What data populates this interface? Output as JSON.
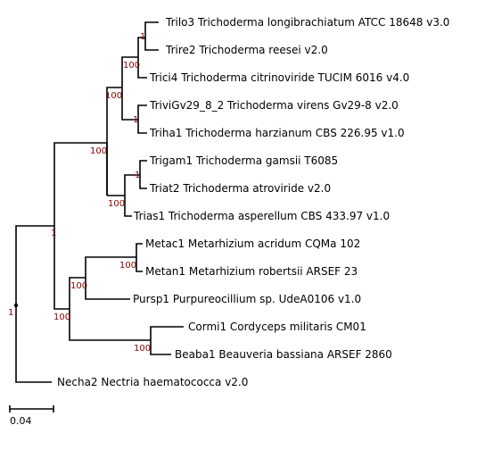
{
  "tree": {
    "taxa": [
      "Trilo3 Trichoderma longibrachiatum ATCC 18648 v3.0",
      "Trire2 Trichoderma reesei v2.0",
      "Trici4 Trichoderma citrinoviride TUCIM 6016 v4.0",
      "TriviGv29_8_2 Trichoderma virens Gv29-8 v2.0",
      "Triha1 Trichoderma harzianum CBS 226.95 v1.0",
      "Trigam1 Trichoderma gamsii T6085",
      "Triat2 Trichoderma atroviride v2.0",
      "Trias1 Trichoderma asperellum CBS 433.97 v1.0",
      "Metac1 Metarhizium acridum CQMa 102",
      "Metan1 Metarhizium robertsii ARSEF 23",
      "Pursp1 Purpureocillium sp. UdeA0106 v1.0",
      "Cormi1 Cordyceps militaris CM01",
      "Beaba1 Beauveria bassiana ARSEF 2860",
      "Necha2 Nectria haematococca v2.0"
    ],
    "support": {
      "trilo_trire": "1",
      "trilo_trici": "100",
      "trichoderma_a": "100",
      "virens_harz": "1",
      "trichoderma_b": "100",
      "gamsii_atro": "1",
      "trichoderma_all": "100",
      "hypocreales_core": "1",
      "metarhizium": "100",
      "meta_pursp": "100",
      "clavicipit": "100",
      "cordyceps_beauveria": "100",
      "root": "1"
    },
    "scale_bar_label": "0.04"
  }
}
